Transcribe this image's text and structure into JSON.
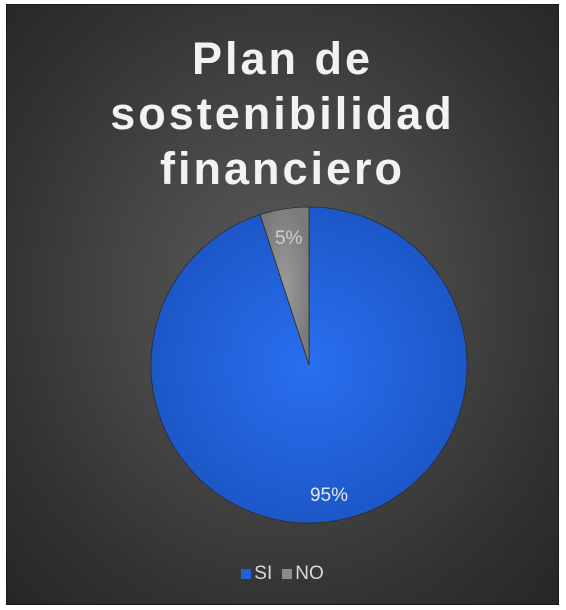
{
  "chart_data": {
    "type": "pie",
    "title": "Plan de\nsostenibilidad\nfinanciero",
    "categories": [
      "SI",
      "NO"
    ],
    "values": [
      95,
      5
    ],
    "data_labels": [
      "95%",
      "5%"
    ],
    "colors": [
      "#2060d8",
      "#8c8c8c"
    ],
    "legend_position": "bottom"
  }
}
